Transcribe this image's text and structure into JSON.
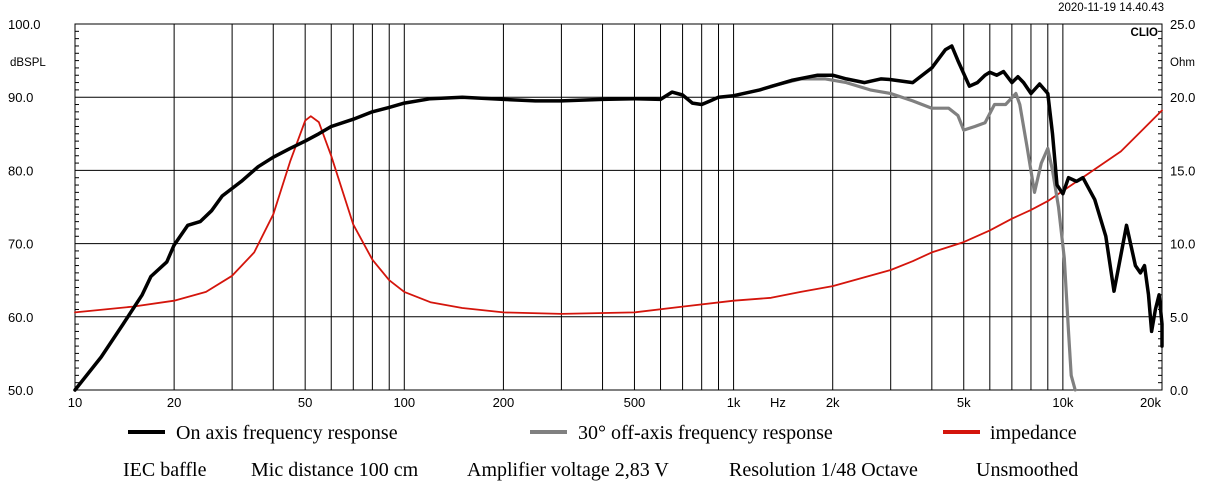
{
  "header": {
    "timestamp": "2020-11-19 14.40.43",
    "brand": "CLIO",
    "left_unit": "dBSPL",
    "right_unit": "Ohm"
  },
  "chart_data": {
    "type": "line",
    "xscale": "log",
    "xlim": [
      10,
      20000
    ],
    "ylim_left": [
      50,
      100
    ],
    "ylim_right": [
      0,
      25
    ],
    "x_tick_labels": [
      {
        "value": 10,
        "label": "10"
      },
      {
        "value": 20,
        "label": "20"
      },
      {
        "value": 50,
        "label": "50"
      },
      {
        "value": 100,
        "label": "100"
      },
      {
        "value": 200,
        "label": "200"
      },
      {
        "value": 500,
        "label": "500"
      },
      {
        "value": 1000,
        "label": "1k"
      },
      {
        "value": 2000,
        "label": "2k"
      },
      {
        "value": 5000,
        "label": "5k"
      },
      {
        "value": 10000,
        "label": "10k"
      },
      {
        "value": 20000,
        "label": "20k"
      }
    ],
    "x_unit_label": "Hz",
    "y_tick_labels_left": [
      "50.0",
      "60.0",
      "70.0",
      "80.0",
      "90.0",
      "100.0"
    ],
    "y_tick_labels_right": [
      "0.0",
      "5.0",
      "10.0",
      "15.0",
      "20.0",
      "25.0"
    ],
    "series": [
      {
        "name": "On axis frequency response",
        "axis": "left",
        "color": "#000000",
        "points": [
          [
            10,
            50
          ],
          [
            12,
            54.5
          ],
          [
            14,
            59
          ],
          [
            16,
            63
          ],
          [
            17,
            65.5
          ],
          [
            19,
            67.5
          ],
          [
            20,
            69.8
          ],
          [
            22,
            72.5
          ],
          [
            24,
            73
          ],
          [
            26,
            74.5
          ],
          [
            28,
            76.5
          ],
          [
            32,
            78.5
          ],
          [
            36,
            80.5
          ],
          [
            40,
            81.8
          ],
          [
            45,
            83
          ],
          [
            50,
            84
          ],
          [
            55,
            85
          ],
          [
            60,
            86
          ],
          [
            70,
            87
          ],
          [
            80,
            88
          ],
          [
            90,
            88.6
          ],
          [
            100,
            89.2
          ],
          [
            120,
            89.8
          ],
          [
            150,
            90
          ],
          [
            200,
            89.7
          ],
          [
            250,
            89.5
          ],
          [
            300,
            89.5
          ],
          [
            400,
            89.7
          ],
          [
            500,
            89.8
          ],
          [
            600,
            89.7
          ],
          [
            650,
            90.7
          ],
          [
            700,
            90.3
          ],
          [
            750,
            89.2
          ],
          [
            800,
            89
          ],
          [
            850,
            89.5
          ],
          [
            900,
            90
          ],
          [
            1000,
            90.2
          ],
          [
            1200,
            91
          ],
          [
            1500,
            92.3
          ],
          [
            1800,
            93
          ],
          [
            2000,
            93
          ],
          [
            2200,
            92.5
          ],
          [
            2500,
            92
          ],
          [
            2800,
            92.5
          ],
          [
            3000,
            92.4
          ],
          [
            3500,
            92
          ],
          [
            4000,
            94
          ],
          [
            4400,
            96.5
          ],
          [
            4600,
            97
          ],
          [
            4800,
            95
          ],
          [
            5200,
            91.5
          ],
          [
            5500,
            92
          ],
          [
            5800,
            93
          ],
          [
            6000,
            93.4
          ],
          [
            6300,
            93
          ],
          [
            6600,
            93.5
          ],
          [
            7000,
            92
          ],
          [
            7300,
            92.8
          ],
          [
            7600,
            92
          ],
          [
            8000,
            90.5
          ],
          [
            8500,
            91.8
          ],
          [
            9000,
            90.5
          ],
          [
            9300,
            85
          ],
          [
            9600,
            78
          ],
          [
            10000,
            76.8
          ],
          [
            10400,
            79
          ],
          [
            11000,
            78.5
          ],
          [
            11500,
            79
          ],
          [
            12500,
            76
          ],
          [
            13500,
            71
          ],
          [
            14300,
            63.5
          ],
          [
            14800,
            67
          ],
          [
            15600,
            72.5
          ],
          [
            16600,
            67
          ],
          [
            17200,
            66
          ],
          [
            17700,
            67
          ],
          [
            18200,
            63
          ],
          [
            18600,
            58
          ],
          [
            19100,
            61
          ],
          [
            19600,
            63
          ],
          [
            20000,
            59
          ],
          [
            20500,
            56
          ]
        ]
      },
      {
        "name": "30° off-axis frequency response",
        "axis": "left",
        "color": "#808080",
        "points": [
          [
            1300,
            91.5
          ],
          [
            1600,
            92.5
          ],
          [
            1900,
            92.5
          ],
          [
            2200,
            92
          ],
          [
            2600,
            91
          ],
          [
            3000,
            90.5
          ],
          [
            3500,
            89.5
          ],
          [
            4000,
            88.5
          ],
          [
            4500,
            88.5
          ],
          [
            4800,
            87.5
          ],
          [
            5000,
            85.5
          ],
          [
            5400,
            86
          ],
          [
            5800,
            86.5
          ],
          [
            6200,
            89
          ],
          [
            6700,
            89
          ],
          [
            7200,
            90.5
          ],
          [
            7400,
            89
          ],
          [
            7800,
            83
          ],
          [
            8200,
            77
          ],
          [
            8600,
            81
          ],
          [
            9000,
            83
          ],
          [
            9300,
            80
          ],
          [
            9700,
            75
          ],
          [
            10100,
            68
          ],
          [
            10400,
            58
          ],
          [
            10600,
            52
          ],
          [
            10900,
            50
          ]
        ]
      },
      {
        "name": "impedance",
        "axis": "right",
        "color": "#d4150c",
        "points": [
          [
            10,
            5.3
          ],
          [
            15,
            5.7
          ],
          [
            20,
            6.1
          ],
          [
            25,
            6.7
          ],
          [
            30,
            7.8
          ],
          [
            35,
            9.4
          ],
          [
            40,
            12
          ],
          [
            45,
            15.6
          ],
          [
            50,
            18.4
          ],
          [
            52,
            18.7
          ],
          [
            55,
            18.3
          ],
          [
            60,
            16
          ],
          [
            70,
            11.3
          ],
          [
            80,
            8.9
          ],
          [
            90,
            7.5
          ],
          [
            100,
            6.7
          ],
          [
            120,
            6
          ],
          [
            150,
            5.6
          ],
          [
            200,
            5.3
          ],
          [
            300,
            5.2
          ],
          [
            500,
            5.3
          ],
          [
            700,
            5.7
          ],
          [
            1000,
            6.1
          ],
          [
            1300,
            6.3
          ],
          [
            1600,
            6.7
          ],
          [
            2000,
            7.1
          ],
          [
            2500,
            7.7
          ],
          [
            3000,
            8.2
          ],
          [
            3500,
            8.8
          ],
          [
            4000,
            9.4
          ],
          [
            5000,
            10.1
          ],
          [
            6000,
            10.9
          ],
          [
            7000,
            11.7
          ],
          [
            8000,
            12.3
          ],
          [
            9000,
            12.9
          ],
          [
            10000,
            13.6
          ],
          [
            12000,
            14.8
          ],
          [
            15000,
            16.3
          ],
          [
            20000,
            19.1
          ]
        ]
      }
    ]
  },
  "legend": {
    "items": [
      {
        "label": "On axis frequency response",
        "color": "#000000"
      },
      {
        "label": "30° off-axis frequency response",
        "color": "#808080"
      },
      {
        "label": "impedance",
        "color": "#d4150c"
      }
    ]
  },
  "footer": {
    "items": [
      "IEC baffle",
      "Mic distance 100 cm",
      "Amplifier voltage 2,83 V",
      "Resolution 1/48 Octave",
      "Unsmoothed"
    ]
  }
}
